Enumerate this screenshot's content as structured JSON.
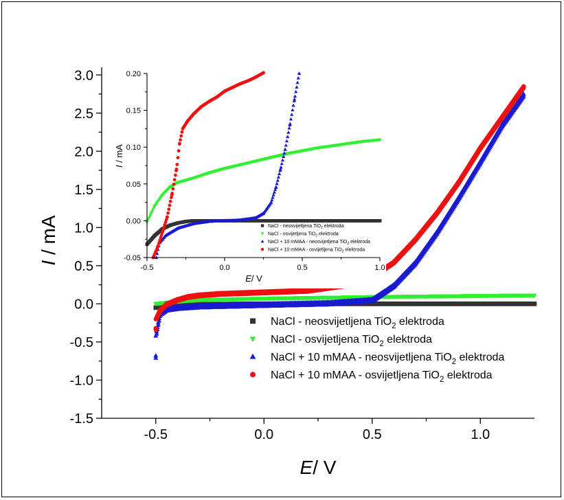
{
  "chart_data": [
    {
      "type": "scatter",
      "role": "main",
      "xlabel": {
        "italic": "E",
        "rest": "/ V"
      },
      "ylabel": {
        "italic": "I",
        "rest": " / mA"
      },
      "xlim": [
        -0.75,
        1.25
      ],
      "ylim": [
        -1.5,
        3.1
      ],
      "xticks": [
        -0.5,
        0.0,
        0.5,
        1.0
      ],
      "xtick_labels": [
        "-0.5",
        "0.0",
        "0.5",
        "1.0"
      ],
      "yticks": [
        -1.5,
        -1.0,
        -0.5,
        0.0,
        0.5,
        1.0,
        1.5,
        2.0,
        2.5,
        3.0
      ],
      "ytick_labels": [
        "-1.5",
        "-1.0",
        "-0.5",
        "0.0",
        "0.5",
        "1.0",
        "1.5",
        "2.0",
        "2.5",
        "3.0"
      ],
      "legend_position": "bottom-right",
      "series": [
        {
          "legend": {
            "pre": "NaCl -  neosvijetljena TiO",
            "sub": "2",
            "post": " elektroda"
          },
          "color": "#333333",
          "marker": "square",
          "x": [
            -0.5,
            -0.45,
            -0.3,
            0.0,
            0.5,
            1.0,
            1.25
          ],
          "y": [
            -0.05,
            -0.02,
            -0.005,
            0.0,
            0.0,
            0.0,
            0.0
          ]
        },
        {
          "legend": {
            "pre": "NaCl - osvijetljena TiO",
            "sub": "2",
            "post": " elektroda"
          },
          "color": "#33ee33",
          "marker": "triangle-down",
          "x": [
            -0.5,
            -0.4,
            -0.3,
            0.0,
            0.5,
            1.0,
            1.25
          ],
          "y": [
            0.0,
            0.03,
            0.05,
            0.07,
            0.09,
            0.105,
            0.11
          ]
        },
        {
          "legend": {
            "pre": "NaCl + 10 mMAA - neosvijetljena TiO",
            "sub": "2",
            "post": " elektroda"
          },
          "color": "#1a1ad0",
          "marker": "triangle-up",
          "x": [
            -0.5,
            -0.5,
            -0.48,
            -0.45,
            -0.4,
            -0.3,
            0.0,
            0.3,
            0.5,
            0.6,
            0.7,
            0.8,
            0.9,
            1.0,
            1.1,
            1.2
          ],
          "y": [
            -0.68,
            -0.42,
            -0.12,
            -0.06,
            -0.04,
            -0.02,
            0.0,
            0.02,
            0.06,
            0.25,
            0.55,
            0.95,
            1.4,
            1.87,
            2.35,
            2.75
          ],
          "y_spread": 0.03
        },
        {
          "legend": {
            "pre": "NaCl + 10 mMAA - osvijetljena TiO",
            "sub": "2",
            "post": " elektroda"
          },
          "color": "#ee1111",
          "marker": "circle",
          "x": [
            -0.5,
            -0.5,
            -0.48,
            -0.45,
            -0.4,
            -0.35,
            -0.3,
            -0.25,
            -0.2,
            -0.1,
            0.0,
            0.2,
            0.4,
            0.5,
            0.6,
            0.7,
            0.8,
            0.9,
            1.0,
            1.1,
            1.2
          ],
          "y": [
            -0.32,
            -0.2,
            -0.08,
            0.0,
            0.06,
            0.1,
            0.12,
            0.13,
            0.14,
            0.15,
            0.16,
            0.18,
            0.26,
            0.36,
            0.55,
            0.85,
            1.2,
            1.6,
            2.05,
            2.45,
            2.85
          ],
          "y_spread": 0.02
        }
      ]
    },
    {
      "type": "scatter",
      "role": "inset",
      "xlabel": {
        "italic": "E",
        "rest": "/ V"
      },
      "ylabel": {
        "italic": "I",
        "rest": " / mA"
      },
      "xlim": [
        -0.5,
        1.0
      ],
      "ylim": [
        -0.05,
        0.2
      ],
      "xticks": [
        -0.5,
        0.0,
        0.5,
        1.0
      ],
      "xtick_labels": [
        "-0.5",
        "0.0",
        "0.5",
        "1.0"
      ],
      "yticks": [
        -0.05,
        0.0,
        0.05,
        0.1,
        0.15,
        0.2
      ],
      "ytick_labels": [
        "-0.05",
        "0.00",
        "0.05",
        "0.10",
        "0.15",
        "0.20"
      ],
      "legend_position": "bottom-right",
      "series": [
        {
          "legend": {
            "pre": "NaCl -  neosvijetljena TiO",
            "sub": "2",
            "post": " elektroda"
          },
          "color": "#333333",
          "marker": "square",
          "x": [
            -0.5,
            -0.45,
            -0.4,
            -0.35,
            -0.3,
            -0.25,
            -0.2,
            -0.1,
            0.0,
            0.5,
            1.0
          ],
          "y": [
            -0.032,
            -0.02,
            -0.011,
            -0.006,
            -0.003,
            -0.001,
            0.0,
            0.0,
            0.0,
            0.0,
            0.0
          ]
        },
        {
          "legend": {
            "pre": "NaCl - osvijetljena TiO",
            "sub": "2",
            "post": " elektroda"
          },
          "color": "#33ee33",
          "marker": "triangle-down",
          "x": [
            -0.5,
            -0.45,
            -0.4,
            -0.35,
            -0.3,
            -0.2,
            -0.1,
            0.0,
            0.1,
            0.2,
            0.3,
            0.4,
            0.5,
            0.6,
            0.7,
            0.8,
            0.9,
            1.0
          ],
          "y": [
            -0.002,
            0.02,
            0.035,
            0.046,
            0.052,
            0.058,
            0.065,
            0.071,
            0.076,
            0.081,
            0.086,
            0.091,
            0.095,
            0.099,
            0.102,
            0.105,
            0.108,
            0.11
          ]
        },
        {
          "legend": {
            "pre": "NaCl + 10 mMAA - neosvijetljena TiO",
            "sub": "2",
            "post": " elektroda"
          },
          "color": "#1a1ad0",
          "marker": "triangle-up",
          "x": [
            -0.44,
            -0.42,
            -0.38,
            -0.3,
            -0.2,
            -0.1,
            0.0,
            0.1,
            0.2,
            0.25,
            0.3,
            0.33,
            0.36,
            0.39,
            0.42,
            0.45,
            0.48
          ],
          "y": [
            -0.05,
            -0.03,
            -0.02,
            -0.01,
            -0.004,
            -0.001,
            0.0,
            0.001,
            0.004,
            0.01,
            0.025,
            0.045,
            0.07,
            0.097,
            0.13,
            0.165,
            0.2
          ]
        },
        {
          "legend": {
            "pre": "NaCl + 10 mMAA - osvijetljena TiO",
            "sub": "2",
            "post": " elektroda"
          },
          "color": "#ee1111",
          "marker": "circle",
          "x": [
            -0.46,
            -0.43,
            -0.4,
            -0.37,
            -0.34,
            -0.31,
            -0.29,
            -0.27,
            -0.24,
            -0.2,
            -0.15,
            -0.1,
            -0.05,
            0.0,
            0.05,
            0.1,
            0.15,
            0.2,
            0.25
          ],
          "y": [
            -0.05,
            -0.035,
            -0.015,
            0.005,
            0.035,
            0.07,
            0.105,
            0.125,
            0.135,
            0.145,
            0.155,
            0.162,
            0.168,
            0.176,
            0.181,
            0.186,
            0.19,
            0.195,
            0.201
          ]
        }
      ]
    }
  ]
}
